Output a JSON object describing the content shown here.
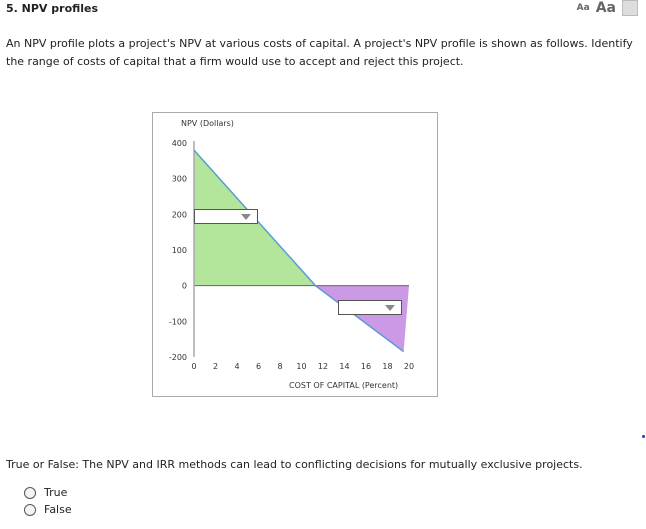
{
  "header": {
    "title": "5.  NPV profiles",
    "font_small": "Aa",
    "font_large": "Aa",
    "print_icon": "print-icon"
  },
  "question": "An NPV profile plots a project's NPV at various costs of capital. A project's NPV profile is shown as follows. Identify the range of costs of capital that a firm would use to accept and reject this project.",
  "chart_data": {
    "type": "area",
    "ylabel": "NPV (Dollars)",
    "xlabel": "COST OF CAPITAL (Percent)",
    "xlim": [
      0,
      20
    ],
    "ylim": [
      -200,
      400
    ],
    "xticks": [
      "0",
      "2",
      "4",
      "6",
      "8",
      "10",
      "12",
      "14",
      "16",
      "18",
      "20"
    ],
    "yticks": [
      "400",
      "300",
      "200",
      "100",
      "0",
      "-100",
      "-200"
    ],
    "series": [
      {
        "x": [
          0,
          11.3,
          19.5
        ],
        "y": [
          380,
          0,
          -185
        ],
        "color": "#5b9bd5"
      }
    ],
    "regions": [
      {
        "points": [
          [
            0,
            380
          ],
          [
            11.3,
            0
          ],
          [
            0,
            0
          ]
        ],
        "color": "#b3e59a"
      },
      {
        "points": [
          [
            11.3,
            0
          ],
          [
            20,
            0
          ],
          [
            19.5,
            -185
          ]
        ],
        "color": "#cc99e6"
      }
    ],
    "grid": false
  },
  "dropdowns": [
    {
      "selected": ""
    },
    {
      "selected": ""
    }
  ],
  "tf": {
    "question": "True or False: The NPV and IRR methods can lead to conflicting decisions for mutually exclusive projects.",
    "options": [
      "True",
      "False"
    ]
  }
}
